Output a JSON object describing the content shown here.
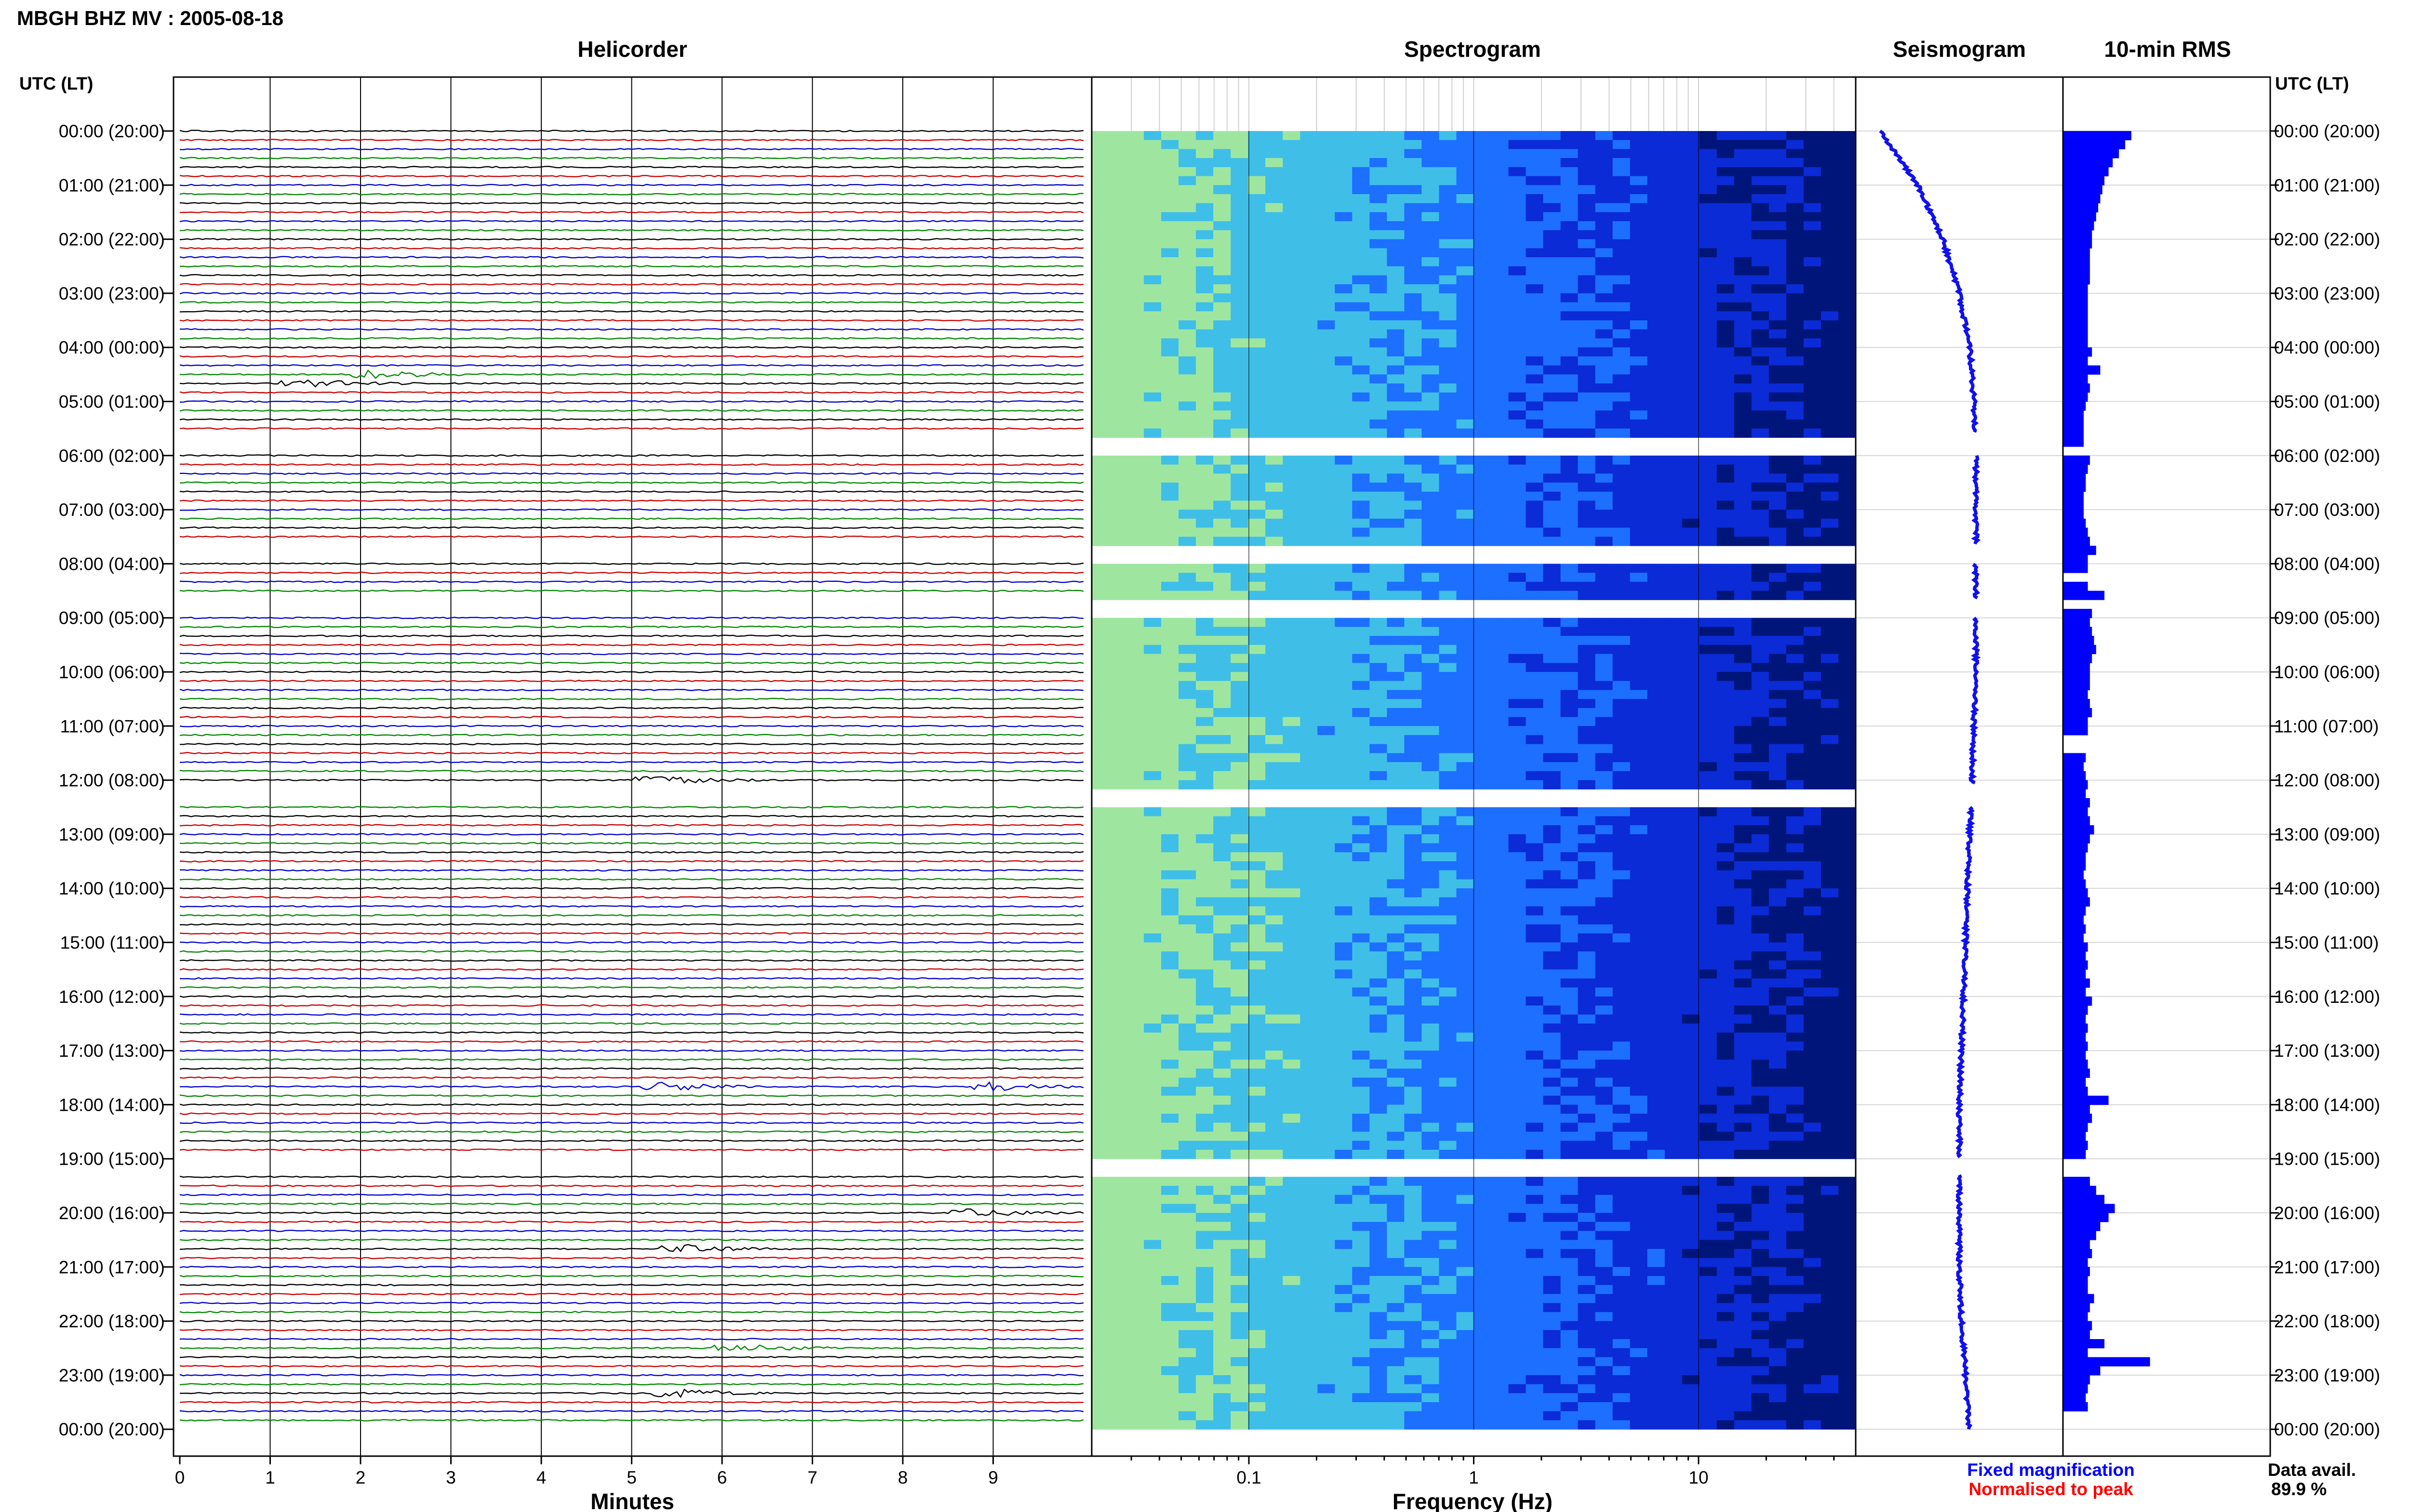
{
  "title": "MBGH BHZ MV : 2005-08-18",
  "time_axis_label": "UTC (LT)",
  "time_labels": [
    "00:00 (20:00)",
    "01:00 (21:00)",
    "02:00 (22:00)",
    "03:00 (23:00)",
    "04:00 (00:00)",
    "05:00 (01:00)",
    "06:00 (02:00)",
    "07:00 (03:00)",
    "08:00 (04:00)",
    "09:00 (05:00)",
    "10:00 (06:00)",
    "11:00 (07:00)",
    "12:00 (08:00)",
    "13:00 (09:00)",
    "14:00 (10:00)",
    "15:00 (11:00)",
    "16:00 (12:00)",
    "17:00 (13:00)",
    "18:00 (14:00)",
    "19:00 (15:00)",
    "20:00 (16:00)",
    "21:00 (17:00)",
    "22:00 (18:00)",
    "23:00 (19:00)",
    "00:00 (20:00)"
  ],
  "legend": {
    "fixed": "Fixed magnification",
    "normalised": "Normalised to peak"
  },
  "availability": {
    "label": "Data avail.",
    "value": "89.9 %"
  },
  "colors": {
    "trace_cycle": [
      "#000000",
      "#cc0000",
      "#0000cc",
      "#008800"
    ],
    "seismogram": "#1010ee",
    "rms": "#0000ff",
    "legend_fixed": "#0000ff",
    "legend_norm": "#ff0000"
  },
  "chart_data": [
    {
      "type": "line",
      "panel": "helicorder",
      "title": "Helicorder",
      "xlabel": "Minutes",
      "x_ticks": [
        "0",
        "1",
        "2",
        "3",
        "4",
        "5",
        "6",
        "7",
        "8",
        "9"
      ],
      "xlim": [
        0,
        10
      ],
      "traces_per_hour": 6,
      "events": [
        {
          "hour": 4.5,
          "minute": 2.2,
          "color_index": 1
        },
        {
          "hour": 4.67,
          "minute": 1.4,
          "color_index": 3
        },
        {
          "hour": 12,
          "minute": 5.3,
          "color_index": 3
        },
        {
          "hour": 17.67,
          "minute": 5.4,
          "color_index": 2
        },
        {
          "hour": 17.67,
          "minute": 9.0,
          "color_index": 2
        },
        {
          "hour": 20,
          "minute": 8.8,
          "color_index": 0
        },
        {
          "hour": 20.67,
          "minute": 5.6,
          "color_index": 3
        },
        {
          "hour": 22.5,
          "minute": 6.2,
          "color_index": 3
        },
        {
          "hour": 23.33,
          "minute": 5.5,
          "color_index": 0
        }
      ]
    },
    {
      "type": "heatmap",
      "panel": "spectrogram",
      "title": "Spectrogram",
      "xlabel": "Frequency (Hz)",
      "x_scale": "log",
      "x_ticks": [
        "0.1",
        "1",
        "10"
      ],
      "xlim": [
        0.02,
        50
      ],
      "colormap": [
        "#9ee6a0",
        "#3fbfe8",
        "#1d6fff",
        "#0a2bd6",
        "#00157a"
      ]
    },
    {
      "type": "line",
      "panel": "seismogram",
      "title": "Seismogram",
      "x_per_hour": [
        0.12,
        0.3,
        0.42,
        0.5,
        0.55,
        0.57,
        0.58,
        0.58,
        0.58,
        0.58,
        0.58,
        0.57,
        0.56,
        0.55,
        0.54,
        0.53,
        0.52,
        0.51,
        0.5,
        0.5,
        0.5,
        0.5,
        0.51,
        0.53,
        0.55
      ]
    },
    {
      "type": "bar",
      "panel": "10-min RMS",
      "title": "10-min RMS",
      "xlim": [
        0,
        1
      ],
      "gaps_hours": [
        [
          5.6,
          6.0
        ],
        [
          7.65,
          8.0
        ],
        [
          8.65,
          9.0
        ],
        [
          12.1,
          12.5
        ],
        [
          18.98,
          19.3
        ]
      ],
      "values": [
        0.33,
        0.3,
        0.27,
        0.24,
        0.22,
        0.2,
        0.19,
        0.18,
        0.17,
        0.16,
        0.15,
        0.14,
        0.14,
        0.13,
        0.13,
        0.13,
        0.13,
        0.12,
        0.12,
        0.12,
        0.12,
        0.12,
        0.12,
        0.12,
        0.14,
        0.12,
        0.18,
        0.12,
        0.13,
        0.12,
        0.11,
        0.1,
        0.1,
        0.1,
        0.1,
        0.0,
        0.13,
        0.12,
        0.11,
        0.11,
        0.1,
        0.1,
        0.1,
        0.11,
        0.12,
        0.13,
        0.16,
        0.12,
        0.12,
        0.0,
        0.12,
        0.2,
        0.0,
        0.14,
        0.13,
        0.14,
        0.15,
        0.16,
        0.14,
        0.13,
        0.13,
        0.13,
        0.12,
        0.13,
        0.14,
        0.12,
        0.12,
        0.0,
        0.0,
        0.11,
        0.1,
        0.11,
        0.12,
        0.11,
        0.13,
        0.12,
        0.13,
        0.15,
        0.13,
        0.12,
        0.11,
        0.11,
        0.1,
        0.11,
        0.12,
        0.13,
        0.11,
        0.1,
        0.11,
        0.1,
        0.12,
        0.11,
        0.12,
        0.11,
        0.13,
        0.11,
        0.14,
        0.12,
        0.11,
        0.12,
        0.11,
        0.12,
        0.11,
        0.12,
        0.13,
        0.11,
        0.12,
        0.22,
        0.13,
        0.14,
        0.12,
        0.11,
        0.12,
        0.11,
        0.0,
        0.0,
        0.13,
        0.16,
        0.2,
        0.25,
        0.22,
        0.18,
        0.16,
        0.13,
        0.14,
        0.12,
        0.13,
        0.12,
        0.12,
        0.15,
        0.13,
        0.12,
        0.14,
        0.13,
        0.2,
        0.12,
        0.42,
        0.18,
        0.13,
        0.12,
        0.11,
        0.12
      ]
    }
  ]
}
